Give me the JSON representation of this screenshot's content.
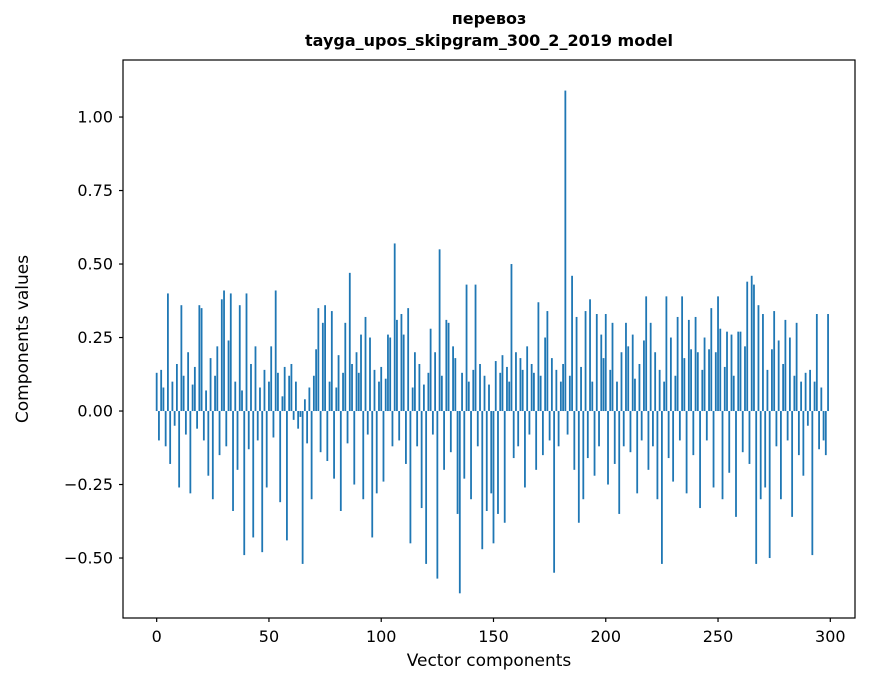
{
  "figure": {
    "title_line1": "перевоз",
    "title_line2": "tayga_upos_skipgram_300_2_2019 model",
    "xlabel": "Vector components",
    "ylabel": "Components values"
  },
  "chart_data": {
    "type": "bar",
    "title": "перевоз — tayga_upos_skipgram_300_2_2019 model",
    "xlabel": "Vector components",
    "ylabel": "Components values",
    "bar_color": "#1f77b4",
    "axis_color": "#000000",
    "grid": false,
    "legend": "none",
    "xlim": [
      -15,
      311
    ],
    "ylim": [
      -0.704,
      1.194
    ],
    "xticks": [
      0,
      50,
      100,
      150,
      200,
      250,
      300
    ],
    "yticks": [
      -0.5,
      -0.25,
      0.0,
      0.25,
      0.5,
      0.75,
      1.0
    ],
    "n_components": 300,
    "values": [
      0.13,
      -0.1,
      0.14,
      0.08,
      -0.12,
      0.4,
      -0.18,
      0.1,
      -0.05,
      0.16,
      -0.26,
      0.36,
      0.12,
      -0.08,
      0.2,
      -0.28,
      0.09,
      0.15,
      -0.06,
      0.36,
      0.35,
      -0.1,
      0.07,
      -0.22,
      0.18,
      -0.3,
      0.12,
      0.22,
      -0.15,
      0.38,
      0.41,
      -0.12,
      0.24,
      0.4,
      -0.34,
      0.1,
      -0.2,
      0.36,
      0.07,
      -0.49,
      0.4,
      -0.13,
      0.16,
      -0.43,
      0.22,
      -0.1,
      0.08,
      -0.48,
      0.14,
      -0.26,
      0.1,
      0.22,
      -0.09,
      0.41,
      0.13,
      -0.31,
      0.05,
      0.15,
      -0.44,
      0.12,
      0.16,
      -0.03,
      0.1,
      -0.06,
      -0.02,
      -0.52,
      0.04,
      -0.11,
      0.08,
      -0.3,
      0.12,
      0.21,
      0.35,
      -0.14,
      0.3,
      0.36,
      -0.17,
      0.1,
      0.34,
      -0.23,
      0.08,
      0.19,
      -0.34,
      0.13,
      0.3,
      -0.11,
      0.47,
      0.16,
      -0.25,
      0.2,
      0.13,
      0.26,
      -0.3,
      0.32,
      -0.08,
      0.25,
      -0.43,
      0.14,
      -0.28,
      0.1,
      0.15,
      -0.24,
      0.11,
      0.26,
      0.25,
      -0.12,
      0.57,
      0.31,
      -0.1,
      0.33,
      0.26,
      -0.18,
      0.35,
      -0.45,
      0.08,
      0.2,
      -0.12,
      0.16,
      -0.33,
      0.09,
      -0.52,
      0.13,
      0.28,
      -0.08,
      0.2,
      -0.57,
      0.55,
      0.12,
      -0.2,
      0.31,
      0.3,
      -0.14,
      0.22,
      0.18,
      -0.35,
      -0.62,
      0.13,
      -0.23,
      0.43,
      0.1,
      -0.3,
      0.14,
      0.43,
      -0.12,
      0.16,
      -0.47,
      0.12,
      -0.34,
      0.09,
      -0.28,
      -0.45,
      0.17,
      -0.35,
      0.13,
      0.19,
      -0.38,
      0.15,
      0.1,
      0.5,
      -0.16,
      0.2,
      -0.12,
      0.18,
      0.14,
      -0.26,
      0.22,
      -0.08,
      0.16,
      0.13,
      -0.2,
      0.37,
      0.12,
      -0.15,
      0.25,
      0.34,
      -0.1,
      0.18,
      -0.55,
      0.14,
      -0.12,
      0.1,
      0.16,
      1.09,
      -0.08,
      0.12,
      0.46,
      -0.2,
      0.32,
      -0.38,
      0.15,
      -0.3,
      0.34,
      -0.16,
      0.38,
      0.1,
      -0.22,
      0.33,
      -0.12,
      0.26,
      0.18,
      0.33,
      -0.25,
      0.14,
      0.3,
      -0.18,
      0.1,
      -0.35,
      0.2,
      -0.12,
      0.3,
      0.22,
      -0.14,
      0.26,
      0.11,
      -0.28,
      0.16,
      -0.1,
      0.24,
      0.39,
      -0.2,
      0.3,
      -0.12,
      0.2,
      -0.3,
      0.14,
      -0.52,
      0.1,
      0.39,
      -0.16,
      0.25,
      -0.24,
      0.12,
      0.32,
      -0.1,
      0.39,
      0.18,
      -0.28,
      0.31,
      0.21,
      -0.15,
      0.32,
      0.2,
      -0.33,
      0.14,
      0.25,
      -0.1,
      0.21,
      0.35,
      -0.26,
      0.2,
      0.39,
      0.28,
      -0.3,
      0.15,
      0.27,
      -0.21,
      0.26,
      0.12,
      -0.36,
      0.27,
      0.27,
      -0.14,
      0.22,
      0.44,
      -0.18,
      0.46,
      0.43,
      -0.52,
      0.36,
      -0.3,
      0.33,
      -0.26,
      0.14,
      -0.5,
      0.21,
      0.34,
      -0.12,
      0.24,
      -0.3,
      0.16,
      0.31,
      -0.1,
      0.25,
      -0.36,
      0.12,
      0.3,
      -0.15,
      0.1,
      -0.22,
      0.13,
      -0.05,
      0.14,
      -0.49,
      0.1,
      0.33,
      -0.13,
      0.08,
      -0.1,
      -0.15,
      0.33
    ]
  }
}
